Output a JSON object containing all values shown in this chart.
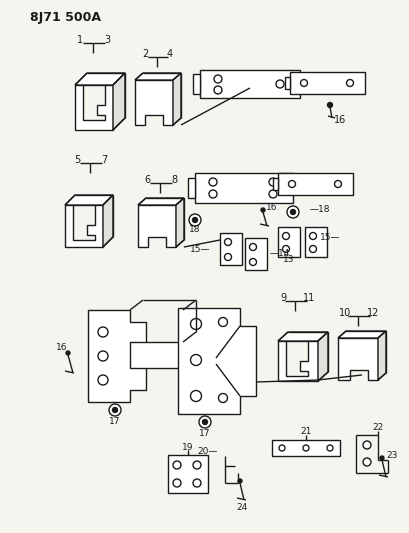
{
  "title": "8J71 500A",
  "bg_color": "#f5f5f0",
  "line_color": "#1a1a1a",
  "figsize": [
    4.1,
    5.33
  ],
  "dpi": 100
}
